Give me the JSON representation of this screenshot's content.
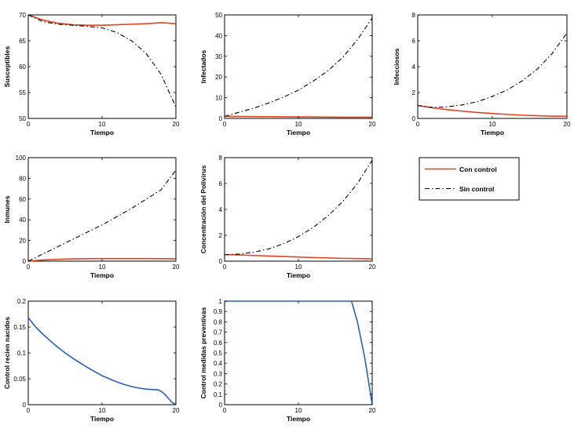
{
  "colors": {
    "con_control": "#e8401c",
    "sin_control": "#000000",
    "control": "#2b5fad"
  },
  "legend": {
    "entries": [
      {
        "label": "Con control",
        "color": "#e8401c",
        "dash": "solid"
      },
      {
        "label": "Sin control",
        "color": "#000000",
        "dash": "dashdot"
      }
    ]
  },
  "chart_data": [
    {
      "type": "line",
      "xlabel": "Tiempo",
      "ylabel": "Susceptibles",
      "xlim": [
        0,
        20
      ],
      "ylim": [
        50,
        70
      ],
      "xticks": [
        0,
        10,
        20
      ],
      "yticks": [
        50,
        55,
        60,
        65,
        70
      ],
      "series": [
        {
          "name": "Con control",
          "style": "solid",
          "color": "#e8401c",
          "x": [
            0,
            2,
            4,
            6,
            8,
            10,
            12,
            14,
            16,
            18,
            20
          ],
          "y": [
            70,
            69,
            68.4,
            68.1,
            68.0,
            68.0,
            68.1,
            68.2,
            68.3,
            68.5,
            68.3
          ]
        },
        {
          "name": "Sin control",
          "style": "dashdot",
          "color": "#000000",
          "x": [
            0,
            2,
            4,
            6,
            8,
            10,
            12,
            14,
            16,
            18,
            20
          ],
          "y": [
            70,
            68.7,
            68.2,
            68.0,
            67.8,
            67.5,
            66.6,
            65.0,
            62.5,
            58.5,
            52.2
          ]
        }
      ]
    },
    {
      "type": "line",
      "xlabel": "Tiempo",
      "ylabel": "Infectados",
      "xlim": [
        0,
        20
      ],
      "ylim": [
        0,
        50
      ],
      "xticks": [
        0,
        10,
        20
      ],
      "yticks": [
        0,
        10,
        20,
        30,
        40,
        50
      ],
      "series": [
        {
          "name": "Con control",
          "style": "solid",
          "color": "#e8401c",
          "x": [
            0,
            4,
            8,
            12,
            16,
            20
          ],
          "y": [
            1,
            0.9,
            0.8,
            0.7,
            0.6,
            0.6
          ]
        },
        {
          "name": "Sin control",
          "style": "dashdot",
          "color": "#000000",
          "x": [
            0,
            2,
            4,
            6,
            8,
            10,
            12,
            14,
            16,
            18,
            20
          ],
          "y": [
            1,
            3,
            5,
            7.5,
            10.3,
            13.7,
            18,
            23,
            29.5,
            38,
            48.5
          ]
        }
      ]
    },
    {
      "type": "line",
      "xlabel": "Tiempo",
      "ylabel": "Infecciosos",
      "xlim": [
        0,
        20
      ],
      "ylim": [
        0,
        8
      ],
      "xticks": [
        0,
        10,
        20
      ],
      "yticks": [
        0,
        2,
        4,
        6,
        8
      ],
      "series": [
        {
          "name": "Con control",
          "style": "solid",
          "color": "#e8401c",
          "x": [
            0,
            2,
            4,
            6,
            8,
            10,
            12,
            14,
            16,
            18,
            20
          ],
          "y": [
            1,
            0.82,
            0.68,
            0.56,
            0.46,
            0.38,
            0.31,
            0.25,
            0.21,
            0.18,
            0.16
          ]
        },
        {
          "name": "Sin control",
          "style": "dashdot",
          "color": "#000000",
          "x": [
            0,
            2,
            4,
            6,
            8,
            10,
            12,
            14,
            16,
            18,
            20
          ],
          "y": [
            1,
            0.85,
            0.9,
            1.05,
            1.3,
            1.7,
            2.2,
            2.9,
            3.8,
            5.0,
            6.6
          ]
        }
      ]
    },
    {
      "type": "line",
      "xlabel": "Tiempo",
      "ylabel": "Inmunes",
      "xlim": [
        0,
        20
      ],
      "ylim": [
        0,
        100
      ],
      "xticks": [
        0,
        10,
        20
      ],
      "yticks": [
        0,
        20,
        40,
        60,
        80,
        100
      ],
      "series": [
        {
          "name": "Con control",
          "style": "solid",
          "color": "#e8401c",
          "x": [
            0,
            2,
            4,
            6,
            8,
            10,
            12,
            14,
            16,
            18,
            20
          ],
          "y": [
            0,
            1.2,
            1.8,
            2.2,
            2.4,
            2.5,
            2.5,
            2.5,
            2.5,
            2.4,
            2.3
          ]
        },
        {
          "name": "Sin control",
          "style": "dashdot",
          "color": "#000000",
          "x": [
            0,
            2,
            4,
            6,
            8,
            10,
            12,
            14,
            16,
            18,
            20
          ],
          "y": [
            0,
            7,
            14,
            21,
            28,
            35,
            43,
            51,
            60,
            69,
            88
          ]
        }
      ]
    },
    {
      "type": "line",
      "xlabel": "Tiempo",
      "ylabel": "Concentración del Polivirus",
      "xlim": [
        0,
        20
      ],
      "ylim": [
        0,
        8
      ],
      "xticks": [
        0,
        10,
        20
      ],
      "yticks": [
        0,
        2,
        4,
        6,
        8
      ],
      "series": [
        {
          "name": "Con control",
          "style": "solid",
          "color": "#e8401c",
          "x": [
            0,
            2,
            4,
            6,
            8,
            10,
            12,
            14,
            16,
            18,
            20
          ],
          "y": [
            0.5,
            0.48,
            0.44,
            0.4,
            0.36,
            0.32,
            0.28,
            0.25,
            0.22,
            0.2,
            0.18
          ]
        },
        {
          "name": "Sin control",
          "style": "dashdot",
          "color": "#000000",
          "x": [
            0,
            2,
            4,
            6,
            8,
            10,
            12,
            14,
            16,
            18,
            20
          ],
          "y": [
            0.5,
            0.55,
            0.7,
            0.95,
            1.35,
            1.9,
            2.6,
            3.5,
            4.6,
            6.0,
            7.8
          ]
        }
      ]
    },
    {
      "type": "line",
      "xlabel": "Tiempo",
      "ylabel": "Control recien nacidos",
      "xlim": [
        0,
        20
      ],
      "ylim": [
        0,
        0.2
      ],
      "xticks": [
        0,
        10,
        20
      ],
      "yticks": [
        0,
        0.05,
        0.1,
        0.15,
        0.2
      ],
      "series": [
        {
          "style": "solid",
          "color": "#2b5fad",
          "x": [
            0,
            1,
            2,
            3,
            4,
            5,
            6,
            7,
            8,
            9,
            10,
            11,
            12,
            13,
            14,
            15,
            16,
            17,
            17.5,
            18,
            18.5,
            19,
            19.5,
            20
          ],
          "y": [
            0.168,
            0.15,
            0.136,
            0.123,
            0.111,
            0.1,
            0.09,
            0.081,
            0.072,
            0.064,
            0.056,
            0.05,
            0.044,
            0.039,
            0.035,
            0.032,
            0.03,
            0.029,
            0.029,
            0.026,
            0.02,
            0.012,
            0.004,
            0.001
          ]
        }
      ]
    },
    {
      "type": "line",
      "xlabel": "Tiempo",
      "ylabel": "Control medidas preventivas",
      "xlim": [
        0,
        20
      ],
      "ylim": [
        0,
        1
      ],
      "xticks": [
        0,
        10,
        20
      ],
      "yticks": [
        0,
        0.1,
        0.2,
        0.3,
        0.4,
        0.5,
        0.6,
        0.7,
        0.8,
        0.9,
        1
      ],
      "series": [
        {
          "style": "solid",
          "color": "#2b5fad",
          "x": [
            0,
            16,
            17.2,
            18,
            19,
            20
          ],
          "y": [
            1,
            1,
            1,
            0.8,
            0.45,
            0
          ]
        }
      ]
    }
  ]
}
